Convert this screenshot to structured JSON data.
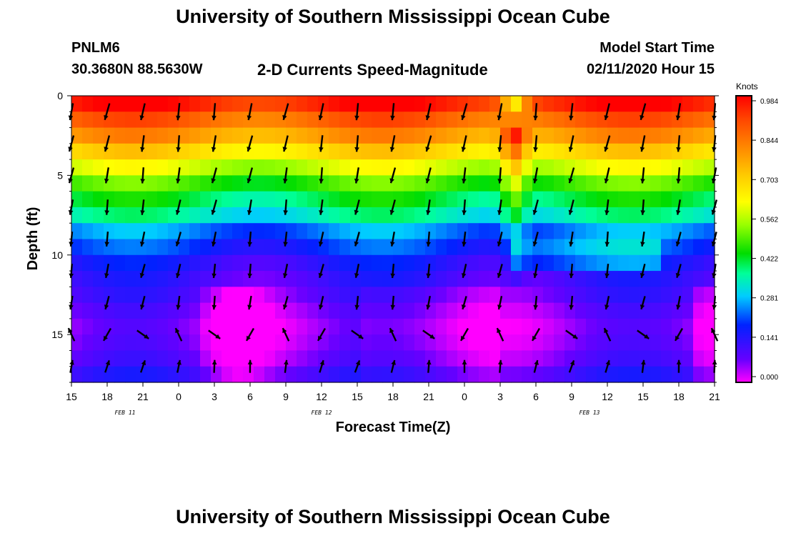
{
  "header": {
    "title": "University of Southern Mississippi Ocean Cube",
    "footer_title": "University of Southern Mississippi Ocean Cube",
    "station_id": "PNLM6",
    "station_coords": "30.3680N 88.5630W",
    "chart_subtitle": "2-D Currents Speed-Magnitude",
    "model_label": "Model Start Time",
    "model_time": "02/11/2020 Hour 15"
  },
  "chart_data": {
    "type": "heatmap",
    "title": "2-D Currents Speed-Magnitude",
    "xlabel": "Forecast Time(Z)",
    "ylabel": "Depth (ft)",
    "x_ticks": [
      "15",
      "18",
      "21",
      "0",
      "3",
      "6",
      "9",
      "12",
      "15",
      "18",
      "21",
      "0",
      "3",
      "6",
      "9",
      "12",
      "15",
      "18",
      "21"
    ],
    "date_labels": [
      {
        "text": "FEB 11",
        "at_tick": 1.5
      },
      {
        "text": "FEB 12",
        "at_tick": 7
      },
      {
        "text": "FEB 13",
        "at_tick": 14.5
      }
    ],
    "y_ticks": [
      0,
      5,
      10,
      15
    ],
    "ylim": [
      0,
      18
    ],
    "colorbar": {
      "unit": "Knots",
      "ticks": [
        "0.984",
        "0.844",
        "0.703",
        "0.562",
        "0.422",
        "0.281",
        "0.141",
        "0.000"
      ],
      "range": [
        0,
        0.984
      ]
    },
    "depth_rows": [
      0.5,
      1.5,
      2.5,
      3.5,
      4.5,
      5.5,
      6.5,
      7.5,
      8.5,
      9.5,
      10.5,
      11.5,
      12.5,
      13.5,
      14.5,
      15.5,
      16.5,
      17.5
    ],
    "speed_profile_knots": [
      0.95,
      0.86,
      0.78,
      0.68,
      0.58,
      0.48,
      0.41,
      0.35,
      0.25,
      0.2,
      0.15,
      0.12,
      0.1,
      0.07,
      0.05,
      0.06,
      0.08,
      0.12
    ],
    "notes": "Speed decreases with depth: surface ~0.9-0.98 kn (red/orange), mid-depth ~0.3-0.5 kn, 13-16 ft ~0.0-0.1 kn (purple/magenta). Elevated speeds near 3Z Feb 13.",
    "vectors": "Arrows show current direction; mostly southward (pointing down) in upper layers, variable near 15 ft."
  }
}
